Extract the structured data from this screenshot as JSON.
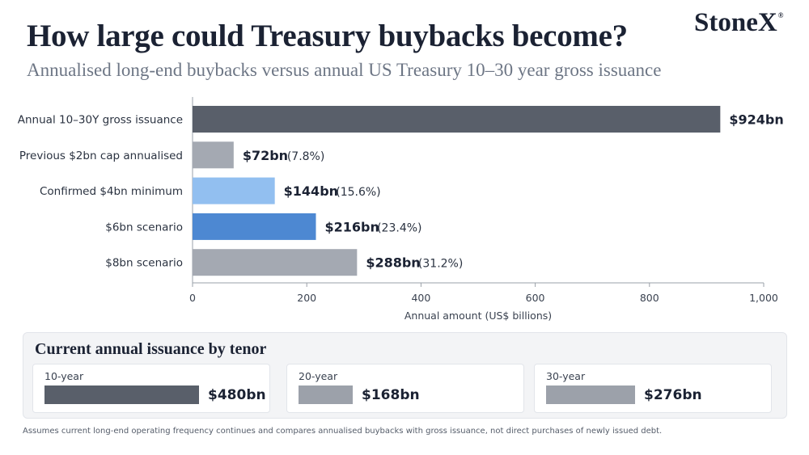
{
  "header": {
    "title": "How large could Treasury buybacks become?",
    "subtitle": "Annualised long-end buybacks versus annual US Treasury 10–30 year gross issuance",
    "brand": "StoneX",
    "brand_mark": "®"
  },
  "chart_data": {
    "type": "bar",
    "orientation": "horizontal",
    "categories": [
      "Annual 10–30Y gross issuance",
      "Previous $2bn cap annualised",
      "Confirmed $4bn minimum",
      "$6bn scenario",
      "$8bn scenario"
    ],
    "values": [
      924,
      72,
      144,
      216,
      288
    ],
    "value_labels": [
      "$924bn",
      "$72bn",
      "$144bn",
      "$216bn",
      "$288bn"
    ],
    "share_labels": [
      "",
      "(7.8%)",
      "(15.6%)",
      "(23.4%)",
      "(31.2%)"
    ],
    "colors": [
      "#595f6a",
      "#a4a9b2",
      "#92bff0",
      "#4d88d2",
      "#a4a9b2"
    ],
    "xlabel": "Annual amount (US$ billions)",
    "xlim": [
      0,
      1000
    ],
    "x_ticks": [
      0,
      200,
      400,
      600,
      800,
      1000
    ],
    "x_tick_labels": [
      "0",
      "200",
      "400",
      "600",
      "800",
      "1,000"
    ],
    "grid": false
  },
  "tenor_panel": {
    "title": "Current annual issuance by tenor",
    "scale_max": 480,
    "items": [
      {
        "label": "10-year",
        "value": 480,
        "value_label": "$480bn",
        "color": "#595f6a"
      },
      {
        "label": "20-year",
        "value": 168,
        "value_label": "$168bn",
        "color": "#9ca1aa"
      },
      {
        "label": "30-year",
        "value": 276,
        "value_label": "$276bn",
        "color": "#9ca1aa"
      }
    ]
  },
  "footnote": "Assumes current long-end operating frequency continues and compares annualised buybacks with gross issuance, not direct purchases of newly issued debt."
}
